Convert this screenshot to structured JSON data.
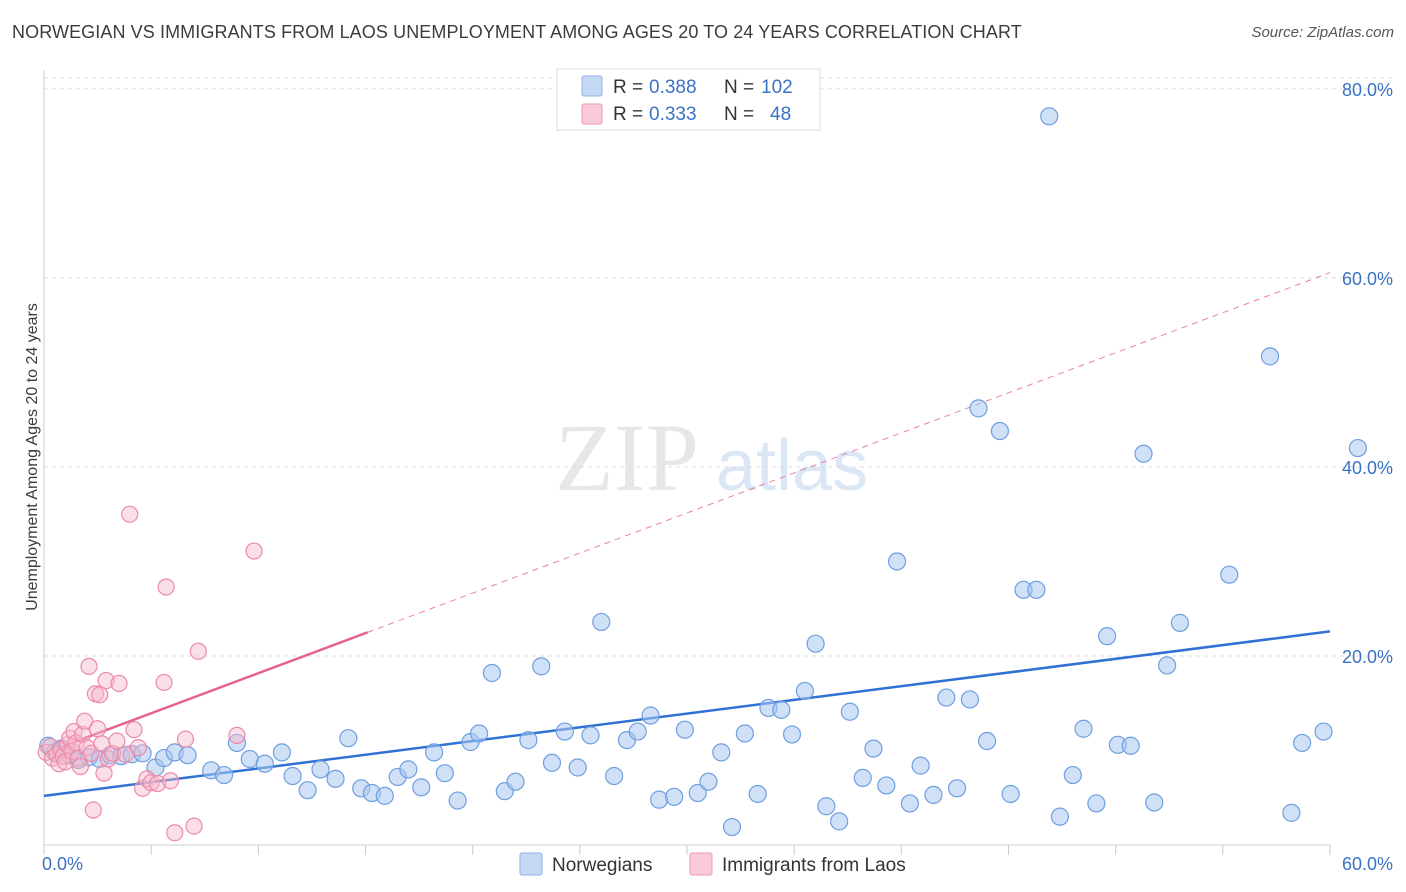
{
  "title": "NORWEGIAN VS IMMIGRANTS FROM LAOS UNEMPLOYMENT AMONG AGES 20 TO 24 YEARS CORRELATION CHART",
  "source": "Source: ZipAtlas.com",
  "watermark": {
    "zip": "ZIP",
    "atlas": "atlas"
  },
  "colors": {
    "blue_fill": "#a8c6f0",
    "blue_stroke": "#6f9fe0",
    "blue_line": "#2f72d4",
    "pink_fill": "#f6b7cb",
    "pink_stroke": "#ec8aa9",
    "pink_line": "#e4628e",
    "tick_color": "#3a72c4",
    "grid": "#dddddd"
  },
  "legend": {
    "rows": [
      {
        "r_label": "R =",
        "r_value": "0.388",
        "n_label": "N =",
        "n_value": "102"
      },
      {
        "r_label": "R =",
        "r_value": "0.333",
        "n_label": "N =",
        "n_value": "48"
      }
    ]
  },
  "chart_data": {
    "type": "scatter",
    "xlabel": "",
    "ylabel": "Unemployment Among Ages 20 to 24 years",
    "xlim": [
      0,
      60
    ],
    "ylim": [
      0,
      82
    ],
    "x_tick_labels": [
      "0.0%",
      "60.0%"
    ],
    "y_ticks": [
      20,
      40,
      60,
      80
    ],
    "y_tick_labels": [
      "20.0%",
      "40.0%",
      "60.0%",
      "80.0%"
    ],
    "grid": true,
    "series": [
      {
        "name": "Norwegians",
        "r": 0.388,
        "n": 102,
        "trend": {
          "x0": 0,
          "y0": 5.2,
          "x1": 60,
          "y1": 22.6,
          "dashed_x1": 60
        },
        "points": [
          [
            0.2,
            10.5
          ],
          [
            0.5,
            9.8
          ],
          [
            0.8,
            10.2
          ],
          [
            1.2,
            9.5
          ],
          [
            1.6,
            9.0
          ],
          [
            2.1,
            9.3
          ],
          [
            2.6,
            9.1
          ],
          [
            3.1,
            9.5
          ],
          [
            3.6,
            9.4
          ],
          [
            4.1,
            9.6
          ],
          [
            4.6,
            9.7
          ],
          [
            5.2,
            8.2
          ],
          [
            5.6,
            9.2
          ],
          [
            6.1,
            9.8
          ],
          [
            6.7,
            9.5
          ],
          [
            7.8,
            7.9
          ],
          [
            8.4,
            7.4
          ],
          [
            9.0,
            10.8
          ],
          [
            9.6,
            9.1
          ],
          [
            10.3,
            8.6
          ],
          [
            11.1,
            9.8
          ],
          [
            11.6,
            7.3
          ],
          [
            12.3,
            5.8
          ],
          [
            12.9,
            8.0
          ],
          [
            13.6,
            7.0
          ],
          [
            14.2,
            11.3
          ],
          [
            14.8,
            6.0
          ],
          [
            15.3,
            5.5
          ],
          [
            15.9,
            5.2
          ],
          [
            16.5,
            7.2
          ],
          [
            17.0,
            8.0
          ],
          [
            17.6,
            6.1
          ],
          [
            18.2,
            9.8
          ],
          [
            18.7,
            7.6
          ],
          [
            19.3,
            4.7
          ],
          [
            19.9,
            10.9
          ],
          [
            20.3,
            11.8
          ],
          [
            20.9,
            18.2
          ],
          [
            21.5,
            5.7
          ],
          [
            22.0,
            6.7
          ],
          [
            22.6,
            11.1
          ],
          [
            23.2,
            18.9
          ],
          [
            23.7,
            8.7
          ],
          [
            24.3,
            12.0
          ],
          [
            24.9,
            8.2
          ],
          [
            25.5,
            11.6
          ],
          [
            26.0,
            23.6
          ],
          [
            26.6,
            7.3
          ],
          [
            27.2,
            11.1
          ],
          [
            27.7,
            12.0
          ],
          [
            28.3,
            13.7
          ],
          [
            28.7,
            4.8
          ],
          [
            29.4,
            5.1
          ],
          [
            29.9,
            12.2
          ],
          [
            30.5,
            5.5
          ],
          [
            31.0,
            6.7
          ],
          [
            31.6,
            9.8
          ],
          [
            32.1,
            1.9
          ],
          [
            32.7,
            11.8
          ],
          [
            33.3,
            5.4
          ],
          [
            33.8,
            14.5
          ],
          [
            34.4,
            14.3
          ],
          [
            34.9,
            11.7
          ],
          [
            35.5,
            16.3
          ],
          [
            36.0,
            21.3
          ],
          [
            36.5,
            4.1
          ],
          [
            37.1,
            2.5
          ],
          [
            37.6,
            14.1
          ],
          [
            38.2,
            7.1
          ],
          [
            38.7,
            10.2
          ],
          [
            39.3,
            6.3
          ],
          [
            39.8,
            30.0
          ],
          [
            40.4,
            4.4
          ],
          [
            40.9,
            8.4
          ],
          [
            41.5,
            5.3
          ],
          [
            42.1,
            15.6
          ],
          [
            42.6,
            6.0
          ],
          [
            43.2,
            15.4
          ],
          [
            43.6,
            46.2
          ],
          [
            44.0,
            11.0
          ],
          [
            44.6,
            43.8
          ],
          [
            45.1,
            5.4
          ],
          [
            45.7,
            27.0
          ],
          [
            46.3,
            27.0
          ],
          [
            46.9,
            77.1
          ],
          [
            47.4,
            3.0
          ],
          [
            48.0,
            7.4
          ],
          [
            48.5,
            12.3
          ],
          [
            49.1,
            4.4
          ],
          [
            49.6,
            22.1
          ],
          [
            50.1,
            10.6
          ],
          [
            50.7,
            10.5
          ],
          [
            51.3,
            41.4
          ],
          [
            51.8,
            4.5
          ],
          [
            52.4,
            19.0
          ],
          [
            53.0,
            23.5
          ],
          [
            55.3,
            28.6
          ],
          [
            57.2,
            51.7
          ],
          [
            58.2,
            3.4
          ],
          [
            58.7,
            10.8
          ],
          [
            59.7,
            12.0
          ],
          [
            61.3,
            42.0
          ]
        ]
      },
      {
        "name": "Immigrants from Laos",
        "r": 0.333,
        "n": 48,
        "trend": {
          "x0": 0,
          "y0": 9.7,
          "x1": 15.1,
          "y1": 22.5,
          "dashed_x1": 60
        },
        "points": [
          [
            0.1,
            9.8
          ],
          [
            0.3,
            10.4
          ],
          [
            0.4,
            9.2
          ],
          [
            0.6,
            9.6
          ],
          [
            0.7,
            8.6
          ],
          [
            0.8,
            10.1
          ],
          [
            0.9,
            9.4
          ],
          [
            1.0,
            8.8
          ],
          [
            1.1,
            10.6
          ],
          [
            1.2,
            11.3
          ],
          [
            1.3,
            9.9
          ],
          [
            1.4,
            12.0
          ],
          [
            1.5,
            10.8
          ],
          [
            1.6,
            9.2
          ],
          [
            1.7,
            8.3
          ],
          [
            1.8,
            11.7
          ],
          [
            1.9,
            13.1
          ],
          [
            2.0,
            10.3
          ],
          [
            2.1,
            18.9
          ],
          [
            2.2,
            9.7
          ],
          [
            2.3,
            3.7
          ],
          [
            2.4,
            16.0
          ],
          [
            2.5,
            12.3
          ],
          [
            2.6,
            15.9
          ],
          [
            2.7,
            10.7
          ],
          [
            2.8,
            7.6
          ],
          [
            2.9,
            17.4
          ],
          [
            3.0,
            9.1
          ],
          [
            3.2,
            9.7
          ],
          [
            3.4,
            11.0
          ],
          [
            3.5,
            17.1
          ],
          [
            3.8,
            9.6
          ],
          [
            4.0,
            35.0
          ],
          [
            4.2,
            12.2
          ],
          [
            4.4,
            10.3
          ],
          [
            4.6,
            6.0
          ],
          [
            4.8,
            7.0
          ],
          [
            5.0,
            6.6
          ],
          [
            5.3,
            6.5
          ],
          [
            5.6,
            17.2
          ],
          [
            5.7,
            27.3
          ],
          [
            5.9,
            6.8
          ],
          [
            6.1,
            1.3
          ],
          [
            6.6,
            11.2
          ],
          [
            7.0,
            2.0
          ],
          [
            7.2,
            20.5
          ],
          [
            9.0,
            11.6
          ],
          [
            9.8,
            31.1
          ]
        ]
      }
    ]
  },
  "bottom_legend": [
    "Norwegians",
    "Immigrants from Laos"
  ]
}
